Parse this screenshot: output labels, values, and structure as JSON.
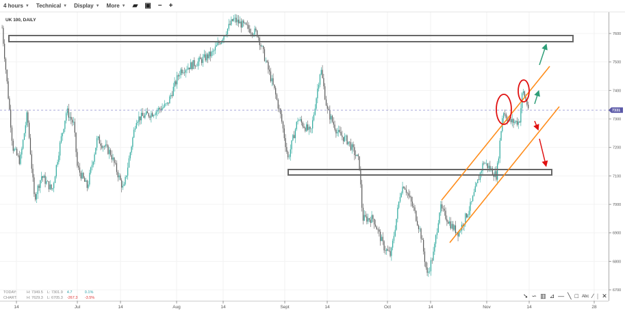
{
  "toolbar": {
    "interval": "4 hours",
    "technical": "Technical",
    "display": "Display",
    "more": "More",
    "icons": [
      "folder-open-icon",
      "save-icon",
      "zoom-out-icon",
      "zoom-in-icon"
    ]
  },
  "chart_title": "UK 100, DAILY",
  "stats": {
    "today": {
      "label": "TODAY:",
      "high": "H: 7349.5",
      "low": "L: 7301.9",
      "change": "4.7",
      "change_pct": "0.1%"
    },
    "chart": {
      "label": "CHART:",
      "high": "H: 7629.3",
      "low": "L: 6705.3",
      "change": "-267.3",
      "change_pct": "-3.5%"
    }
  },
  "colors": {
    "up": "#26a69a",
    "down": "#555555",
    "channel": "#ff8c1a",
    "circle": "#e01010",
    "arrow_up": "#2e9e78",
    "arrow_down": "#e01010",
    "price_tag": "#5c5aa8"
  },
  "drawing_tools": [
    "pointer-icon",
    "curve-icon",
    "fib-icon",
    "fan-icon",
    "horizontal-line-icon",
    "trend-line-icon",
    "rectangle-icon",
    "text-icon",
    "pencil-icon",
    "delete-icon"
  ],
  "chart_data": {
    "type": "candlestick",
    "title": "UK 100, DAILY",
    "current_price": "7331",
    "ylim": [
      6680,
      7650
    ],
    "yticks": [
      "7600",
      "7500",
      "7400",
      "7300",
      "7200",
      "7100",
      "7000",
      "6900",
      "6800",
      "6700"
    ],
    "xticks": [
      {
        "date": "06-14",
        "label": "14"
      },
      {
        "date": "07-01",
        "label": "Jul"
      },
      {
        "date": "07-14",
        "label": "14"
      },
      {
        "date": "08-01",
        "label": "Aug"
      },
      {
        "date": "08-14",
        "label": "14"
      },
      {
        "date": "09-01",
        "label": "Sept"
      },
      {
        "date": "09-14",
        "label": "14"
      },
      {
        "date": "10-01",
        "label": "Oct"
      },
      {
        "date": "10-14",
        "label": "14"
      },
      {
        "date": "11-01",
        "label": "Nov"
      },
      {
        "date": "11-14",
        "label": "14"
      },
      {
        "date": "11-28",
        "label": "28"
      }
    ],
    "approx_path": [
      [
        "06-10",
        7620
      ],
      [
        "06-13",
        7200
      ],
      [
        "06-15",
        7150
      ],
      [
        "06-17",
        7320
      ],
      [
        "06-19",
        7020
      ],
      [
        "06-21",
        7100
      ],
      [
        "06-24",
        7050
      ],
      [
        "06-26",
        7200
      ],
      [
        "06-28",
        7330
      ],
      [
        "06-30",
        7280
      ],
      [
        "07-01",
        7130
      ],
      [
        "07-04",
        7060
      ],
      [
        "07-07",
        7230
      ],
      [
        "07-11",
        7180
      ],
      [
        "07-15",
        7050
      ],
      [
        "07-19",
        7300
      ],
      [
        "07-24",
        7320
      ],
      [
        "07-29",
        7350
      ],
      [
        "08-02",
        7470
      ],
      [
        "08-07",
        7500
      ],
      [
        "08-11",
        7530
      ],
      [
        "08-17",
        7650
      ],
      [
        "08-21",
        7620
      ],
      [
        "08-24",
        7600
      ],
      [
        "08-29",
        7400
      ],
      [
        "08-31",
        7300
      ],
      [
        "09-02",
        7160
      ],
      [
        "09-05",
        7300
      ],
      [
        "09-09",
        7250
      ],
      [
        "09-12",
        7480
      ],
      [
        "09-14",
        7330
      ],
      [
        "09-17",
        7250
      ],
      [
        "09-20",
        7220
      ],
      [
        "09-23",
        7150
      ],
      [
        "09-24",
        6950
      ],
      [
        "09-27",
        6950
      ],
      [
        "09-30",
        6850
      ],
      [
        "10-02",
        6820
      ],
      [
        "10-05",
        7050
      ],
      [
        "10-06",
        7070
      ],
      [
        "10-09",
        6980
      ],
      [
        "10-11",
        6900
      ],
      [
        "10-13",
        6750
      ],
      [
        "10-15",
        6830
      ],
      [
        "10-17",
        6990
      ],
      [
        "10-21",
        6920
      ],
      [
        "10-23",
        6900
      ],
      [
        "10-27",
        7000
      ],
      [
        "10-31",
        7150
      ],
      [
        "11-04",
        7100
      ],
      [
        "11-06",
        7330
      ],
      [
        "11-08",
        7290
      ],
      [
        "11-11",
        7290
      ],
      [
        "11-12",
        7400
      ],
      [
        "11-14",
        7331
      ]
    ]
  }
}
